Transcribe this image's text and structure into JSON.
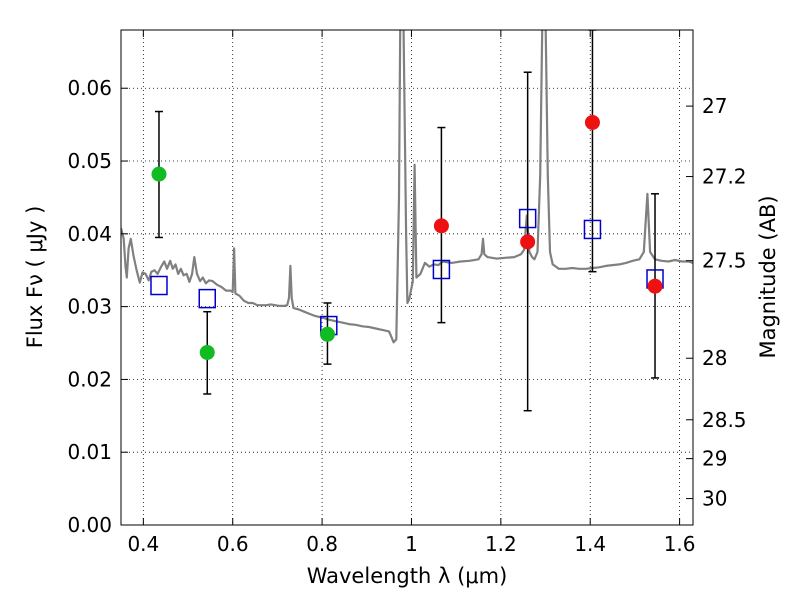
{
  "chart_data": {
    "type": "scatter",
    "title": "",
    "xlabel": "Wavelength  λ (μm)",
    "ylabel": "Flux  Fν  ( μJy )",
    "ylabel_right": "Magnitude (AB)",
    "xlim": [
      0.35,
      1.63
    ],
    "ylim": [
      0.0,
      0.068
    ],
    "grid": true,
    "x_ticks": [
      {
        "value": 0.4,
        "label": "0.4"
      },
      {
        "value": 0.6,
        "label": "0.6"
      },
      {
        "value": 0.8,
        "label": "0.8"
      },
      {
        "value": 1.0,
        "label": "1"
      },
      {
        "value": 1.2,
        "label": "1.2"
      },
      {
        "value": 1.4,
        "label": "1.4"
      },
      {
        "value": 1.6,
        "label": "1.6"
      }
    ],
    "y_ticks": [
      {
        "value": 0.0,
        "label": "0.00"
      },
      {
        "value": 0.01,
        "label": "0.01"
      },
      {
        "value": 0.02,
        "label": "0.02"
      },
      {
        "value": 0.03,
        "label": "0.03"
      },
      {
        "value": 0.04,
        "label": "0.04"
      },
      {
        "value": 0.05,
        "label": "0.05"
      },
      {
        "value": 0.06,
        "label": "0.06"
      }
    ],
    "right_ticks": [
      {
        "mag": 27.0,
        "label": "27"
      },
      {
        "mag": 27.2,
        "label": "27.2"
      },
      {
        "mag": 27.5,
        "label": "27.5"
      },
      {
        "mag": 28.0,
        "label": "28"
      },
      {
        "mag": 28.5,
        "label": "28.5"
      },
      {
        "mag": 29.0,
        "label": "29"
      },
      {
        "mag": 30.0,
        "label": "30"
      }
    ],
    "series": [
      {
        "role": "model_spectrum",
        "color": "#808080",
        "points": [
          [
            0.35,
            0.0408
          ],
          [
            0.356,
            0.0393
          ],
          [
            0.36,
            0.0355
          ],
          [
            0.363,
            0.034
          ],
          [
            0.367,
            0.038
          ],
          [
            0.372,
            0.0393
          ],
          [
            0.378,
            0.037
          ],
          [
            0.385,
            0.035
          ],
          [
            0.392,
            0.0333
          ],
          [
            0.398,
            0.0347
          ],
          [
            0.405,
            0.0345
          ],
          [
            0.412,
            0.0336
          ],
          [
            0.418,
            0.0348
          ],
          [
            0.425,
            0.035
          ],
          [
            0.432,
            0.0345
          ],
          [
            0.44,
            0.0355
          ],
          [
            0.447,
            0.0362
          ],
          [
            0.453,
            0.0352
          ],
          [
            0.46,
            0.0363
          ],
          [
            0.466,
            0.0352
          ],
          [
            0.472,
            0.0358
          ],
          [
            0.478,
            0.0345
          ],
          [
            0.484,
            0.0352
          ],
          [
            0.49,
            0.0343
          ],
          [
            0.497,
            0.0345
          ],
          [
            0.503,
            0.0334
          ],
          [
            0.509,
            0.0345
          ],
          [
            0.514,
            0.0368
          ],
          [
            0.52,
            0.0345
          ],
          [
            0.527,
            0.0335
          ],
          [
            0.533,
            0.034
          ],
          [
            0.54,
            0.0332
          ],
          [
            0.547,
            0.0336
          ],
          [
            0.555,
            0.0335
          ],
          [
            0.565,
            0.033
          ],
          [
            0.575,
            0.0327
          ],
          [
            0.585,
            0.0322
          ],
          [
            0.595,
            0.0322
          ],
          [
            0.6,
            0.032
          ],
          [
            0.603,
            0.038
          ],
          [
            0.606,
            0.0318
          ],
          [
            0.615,
            0.0315
          ],
          [
            0.625,
            0.0308
          ],
          [
            0.635,
            0.0305
          ],
          [
            0.645,
            0.0305
          ],
          [
            0.655,
            0.0302
          ],
          [
            0.665,
            0.0302
          ],
          [
            0.675,
            0.0302
          ],
          [
            0.685,
            0.0303
          ],
          [
            0.695,
            0.0302
          ],
          [
            0.705,
            0.0301
          ],
          [
            0.715,
            0.0301
          ],
          [
            0.722,
            0.0302
          ],
          [
            0.726,
            0.0312
          ],
          [
            0.729,
            0.0356
          ],
          [
            0.732,
            0.0312
          ],
          [
            0.736,
            0.0298
          ],
          [
            0.748,
            0.0296
          ],
          [
            0.76,
            0.0293
          ],
          [
            0.772,
            0.029
          ],
          [
            0.785,
            0.0287
          ],
          [
            0.8,
            0.0285
          ],
          [
            0.815,
            0.0282
          ],
          [
            0.83,
            0.028
          ],
          [
            0.845,
            0.0278
          ],
          [
            0.86,
            0.0276
          ],
          [
            0.875,
            0.0275
          ],
          [
            0.89,
            0.0273
          ],
          [
            0.905,
            0.0272
          ],
          [
            0.92,
            0.027
          ],
          [
            0.935,
            0.0268
          ],
          [
            0.95,
            0.0266
          ],
          [
            0.96,
            0.0251
          ],
          [
            0.966,
            0.0255
          ],
          [
            0.972,
            0.045
          ],
          [
            0.975,
            0.07
          ],
          [
            0.982,
            0.07
          ],
          [
            0.988,
            0.04
          ],
          [
            0.991,
            0.0305
          ],
          [
            0.995,
            0.031
          ],
          [
            1.003,
            0.0335
          ],
          [
            1.007,
            0.0495
          ],
          [
            1.011,
            0.034
          ],
          [
            1.02,
            0.0345
          ],
          [
            1.03,
            0.036
          ],
          [
            1.04,
            0.0355
          ],
          [
            1.05,
            0.0358
          ],
          [
            1.06,
            0.0357
          ],
          [
            1.07,
            0.0362
          ],
          [
            1.09,
            0.036
          ],
          [
            1.11,
            0.0362
          ],
          [
            1.13,
            0.0363
          ],
          [
            1.15,
            0.0365
          ],
          [
            1.157,
            0.0372
          ],
          [
            1.16,
            0.0393
          ],
          [
            1.163,
            0.0372
          ],
          [
            1.17,
            0.0368
          ],
          [
            1.19,
            0.0366
          ],
          [
            1.21,
            0.0367
          ],
          [
            1.23,
            0.0368
          ],
          [
            1.245,
            0.0372
          ],
          [
            1.252,
            0.0378
          ],
          [
            1.258,
            0.0425
          ],
          [
            1.264,
            0.0375
          ],
          [
            1.27,
            0.0368
          ],
          [
            1.275,
            0.0365
          ],
          [
            1.282,
            0.0375
          ],
          [
            1.288,
            0.048
          ],
          [
            1.293,
            0.07
          ],
          [
            1.3,
            0.07
          ],
          [
            1.305,
            0.048
          ],
          [
            1.31,
            0.0375
          ],
          [
            1.316,
            0.0358
          ],
          [
            1.33,
            0.0352
          ],
          [
            1.345,
            0.0352
          ],
          [
            1.36,
            0.0353
          ],
          [
            1.375,
            0.0352
          ],
          [
            1.39,
            0.0352
          ],
          [
            1.405,
            0.0353
          ],
          [
            1.42,
            0.0354
          ],
          [
            1.435,
            0.0356
          ],
          [
            1.45,
            0.0357
          ],
          [
            1.465,
            0.0358
          ],
          [
            1.48,
            0.036
          ],
          [
            1.495,
            0.0363
          ],
          [
            1.51,
            0.0365
          ],
          [
            1.52,
            0.0375
          ],
          [
            1.528,
            0.0455
          ],
          [
            1.534,
            0.0375
          ],
          [
            1.545,
            0.0365
          ],
          [
            1.56,
            0.0363
          ],
          [
            1.575,
            0.0362
          ],
          [
            1.59,
            0.0364
          ],
          [
            1.605,
            0.0362
          ],
          [
            1.62,
            0.0362
          ],
          [
            1.63,
            0.036
          ]
        ]
      },
      {
        "role": "observed_green",
        "color": "#11bb22",
        "marker": "circle",
        "points": [
          {
            "x": 0.435,
            "y": 0.0482,
            "err_low": 0.0395,
            "err_high": 0.0568
          },
          {
            "x": 0.543,
            "y": 0.0237,
            "err_low": 0.018,
            "err_high": 0.0293
          },
          {
            "x": 0.812,
            "y": 0.0262,
            "err_low": 0.0221,
            "err_high": 0.0305
          }
        ]
      },
      {
        "role": "observed_red",
        "color": "#ee1111",
        "marker": "circle",
        "points": [
          {
            "x": 1.067,
            "y": 0.0411,
            "err_low": 0.0278,
            "err_high": 0.0546
          },
          {
            "x": 1.26,
            "y": 0.0389,
            "err_low": 0.0157,
            "err_high": 0.0622
          },
          {
            "x": 1.405,
            "y": 0.0553,
            "err_low": 0.0348,
            "err_high": 0.068
          },
          {
            "x": 1.545,
            "y": 0.0328,
            "err_low": 0.0202,
            "err_high": 0.0455
          }
        ]
      },
      {
        "role": "model_photometry",
        "color": "#0000cc",
        "marker": "open-square",
        "points": [
          {
            "x": 0.435,
            "y": 0.0329
          },
          {
            "x": 0.543,
            "y": 0.0311
          },
          {
            "x": 0.815,
            "y": 0.0274
          },
          {
            "x": 1.067,
            "y": 0.0351
          },
          {
            "x": 1.26,
            "y": 0.0421
          },
          {
            "x": 1.405,
            "y": 0.0406
          },
          {
            "x": 1.545,
            "y": 0.0338
          }
        ]
      }
    ]
  }
}
